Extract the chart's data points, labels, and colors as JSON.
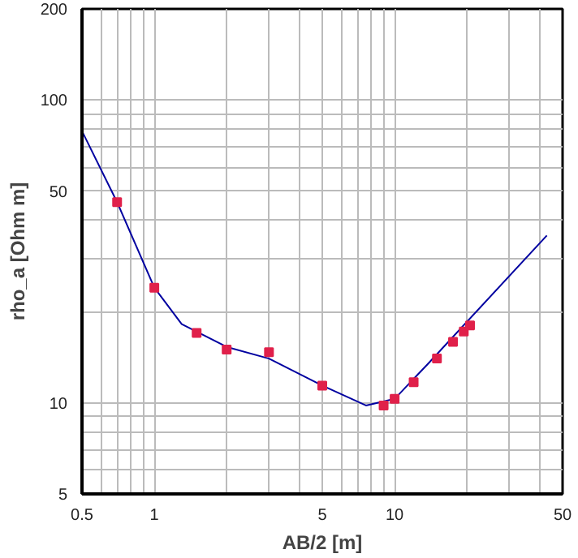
{
  "chart_data": {
    "type": "line",
    "xlabel": "AB/2 [m]",
    "ylabel": "rho_a [Ohm m]",
    "log": "xy",
    "grid": true,
    "xlim": [
      0.5,
      50
    ],
    "ylim": [
      5,
      200
    ],
    "xticks": [
      0.5,
      {
        "value": 0.6,
        "label": null
      },
      {
        "value": 0.7,
        "label": null
      },
      {
        "value": 0.8,
        "label": null
      },
      {
        "value": 0.9,
        "label": null
      },
      1,
      {
        "value": 2,
        "label": null
      },
      {
        "value": 3,
        "label": null
      },
      {
        "value": 4,
        "label": null
      },
      5,
      {
        "value": 6,
        "label": null
      },
      {
        "value": 7,
        "label": null
      },
      {
        "value": 8,
        "label": null
      },
      {
        "value": 9,
        "label": null
      },
      10,
      {
        "value": 20,
        "label": null
      },
      {
        "value": 30,
        "label": null
      },
      {
        "value": 40,
        "label": null
      },
      50
    ],
    "yticks": [
      5,
      {
        "value": 6,
        "label": null
      },
      {
        "value": 7,
        "label": null
      },
      {
        "value": 8,
        "label": null
      },
      {
        "value": 9,
        "label": null
      },
      10,
      {
        "value": 20,
        "label": null
      },
      {
        "value": 30,
        "label": null
      },
      {
        "value": 40,
        "label": null
      },
      50,
      {
        "value": 60,
        "label": null
      },
      {
        "value": 70,
        "label": null
      },
      {
        "value": 80,
        "label": null
      },
      {
        "value": 90,
        "label": null
      },
      100,
      200
    ],
    "series": [
      {
        "color": "#0000a0",
        "line_style": "solid",
        "marker": "none",
        "x": [
          0.5,
          0.7,
          1,
          1.3,
          2,
          3,
          5,
          7.6,
          10,
          13.7,
          43
        ],
        "values": [
          79,
          46,
          24,
          18.2,
          15.3,
          14,
          11.4,
          9.8,
          10.3,
          13.4,
          35.7
        ]
      },
      {
        "type": "scatter",
        "color": "#e0204a",
        "marker": "square",
        "x": [
          0.7,
          1,
          1.5,
          2,
          3,
          5,
          9,
          10,
          12,
          15,
          17.5,
          19.4,
          20.6
        ],
        "values": [
          46,
          24,
          17,
          15,
          14.7,
          11.4,
          9.8,
          10.3,
          11.7,
          14,
          15.9,
          17.2,
          18
        ]
      }
    ]
  }
}
